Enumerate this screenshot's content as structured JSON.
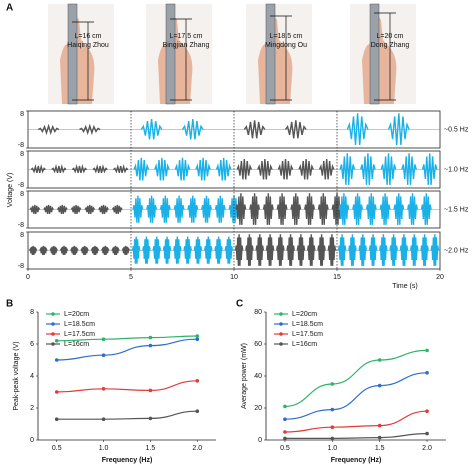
{
  "panel_labels": [
    "A",
    "B",
    "C"
  ],
  "photos": [
    {
      "length": "L=16 cm",
      "name": "Haiqing Zhou"
    },
    {
      "length": "L=17.5 cm",
      "name": "Bingjian Zhang"
    },
    {
      "length": "L=18.5 cm",
      "name": "Mingdong Ou"
    },
    {
      "length": "L=20 cm",
      "name": "Dong Zhang"
    }
  ],
  "chart_data": [
    {
      "type": "waveform",
      "ylabel": "Voltage (V)",
      "xlabel": "Time (s)",
      "xlim": [
        0,
        20
      ],
      "xticks": [
        0,
        5,
        10,
        15,
        20
      ],
      "ylim": [
        -8,
        8
      ],
      "yticks": [
        8,
        -8
      ],
      "segment_colors": [
        "#555555",
        "#1ab1e8",
        "#555555",
        "#1ab1e8"
      ],
      "rows": [
        {
          "label": "~0.5 Hz",
          "values": [
            1.5,
            4.5,
            4,
            7
          ]
        },
        {
          "label": "~1.0 Hz",
          "values": [
            1.5,
            5,
            4.5,
            7
          ]
        },
        {
          "label": "~1.5 Hz",
          "values": [
            2,
            6,
            7,
            7
          ]
        },
        {
          "label": "~2.0 Hz",
          "values": [
            2,
            6,
            7,
            7
          ]
        }
      ]
    },
    {
      "type": "line",
      "xlabel": "Frequency (Hz)",
      "ylabel": "Peak-peak voltage (V)",
      "x": [
        0.5,
        1,
        1.5,
        2
      ],
      "xlim": [
        0.3,
        2.2
      ],
      "xticks": [
        0.5,
        {
          "value": 1,
          "label": "1.0"
        },
        1.5,
        {
          "value": 2,
          "label": "2.0"
        }
      ],
      "ylim": [
        0,
        8
      ],
      "yticks": [
        0,
        2,
        4,
        6,
        8
      ],
      "series": [
        {
          "name": "L=20cm",
          "color": "#2db36b",
          "values": [
            6.2,
            6.3,
            6.4,
            6.5
          ]
        },
        {
          "name": "L=18.5cm",
          "color": "#2f6fc9",
          "values": [
            5.0,
            5.3,
            5.9,
            6.3
          ]
        },
        {
          "name": "L=17.5cm",
          "color": "#e23a3a",
          "values": [
            3.0,
            3.2,
            3.1,
            3.7
          ]
        },
        {
          "name": "L=16cm",
          "color": "#555555",
          "values": [
            1.3,
            1.3,
            1.35,
            1.8
          ]
        }
      ]
    },
    {
      "type": "line",
      "xlabel": "Frequency (Hz)",
      "ylabel": "Average power (mW)",
      "x": [
        0.5,
        1,
        1.5,
        2
      ],
      "xlim": [
        0.3,
        2.2
      ],
      "xticks": [
        0.5,
        {
          "value": 1,
          "label": "1.0"
        },
        1.5,
        {
          "value": 2,
          "label": "2.0"
        }
      ],
      "ylim": [
        0,
        80
      ],
      "yticks": [
        0,
        20,
        40,
        60,
        80
      ],
      "series": [
        {
          "name": "L=20cm",
          "color": "#2db36b",
          "values": [
            21,
            35,
            50,
            56
          ]
        },
        {
          "name": "L=18.5cm",
          "color": "#2f6fc9",
          "values": [
            13,
            19,
            34,
            42
          ]
        },
        {
          "name": "L=17.5cm",
          "color": "#e23a3a",
          "values": [
            5,
            8,
            9,
            18
          ]
        },
        {
          "name": "L=16cm",
          "color": "#555555",
          "values": [
            1,
            1,
            1.5,
            4
          ]
        }
      ]
    }
  ]
}
